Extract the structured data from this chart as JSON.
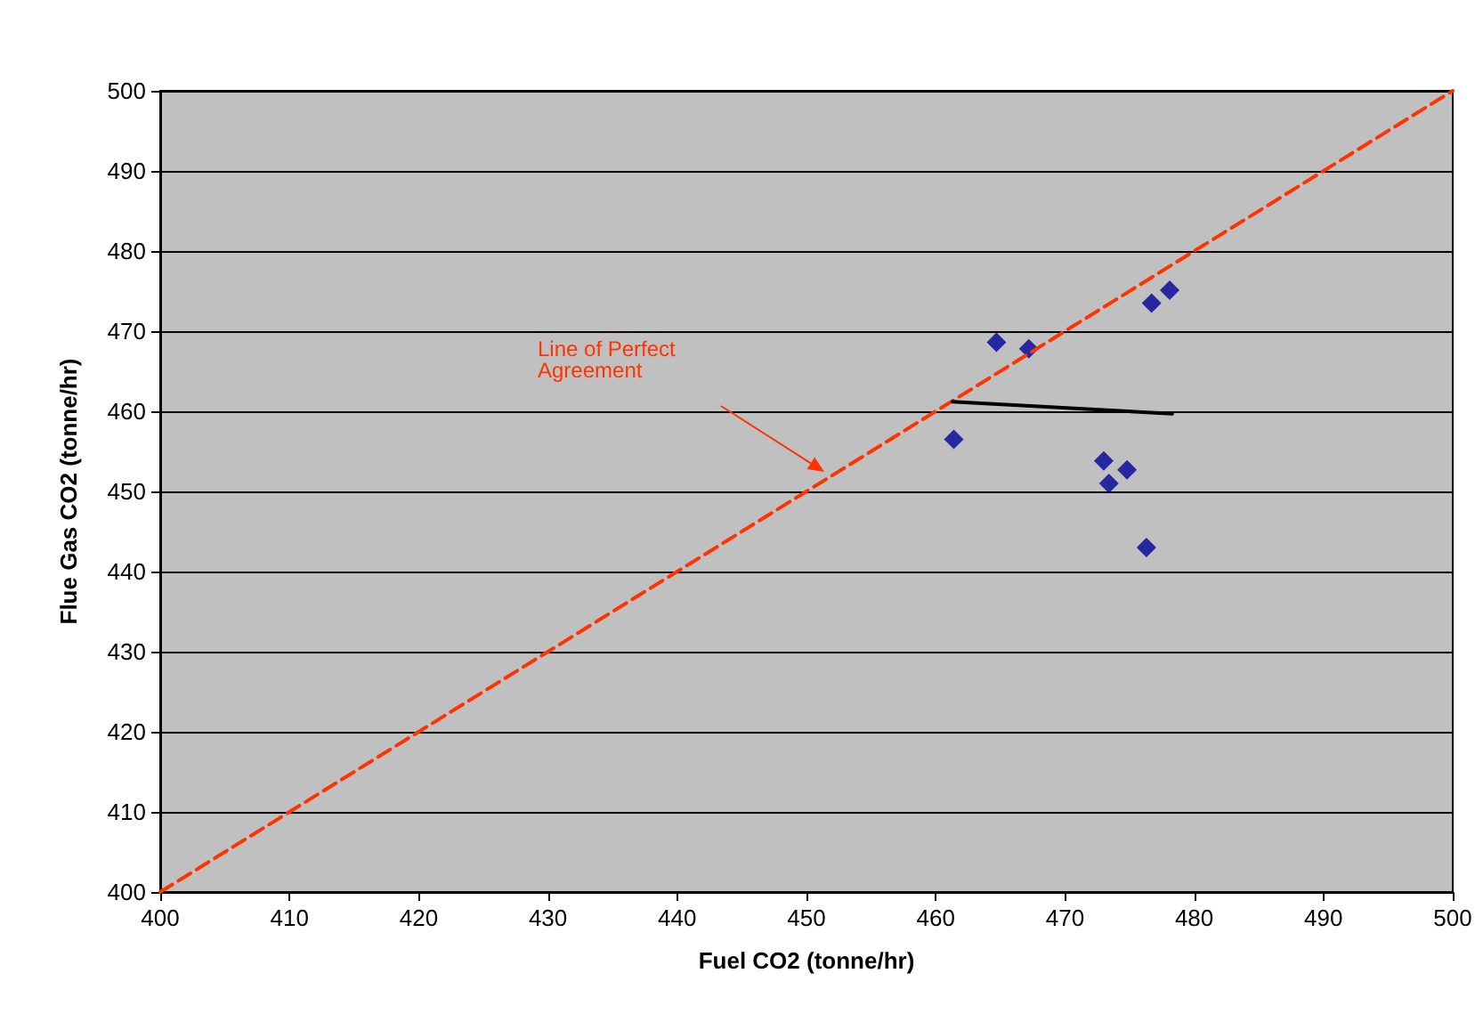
{
  "chart_data": {
    "type": "scatter",
    "xlabel": "Fuel CO2 (tonne/hr)",
    "ylabel": "Flue Gas CO2 (tonne/hr)",
    "xlim": [
      400,
      500
    ],
    "xticks": [
      400,
      410,
      420,
      430,
      440,
      450,
      460,
      470,
      480,
      490,
      500
    ],
    "ylim": [
      400,
      500
    ],
    "yticks": [
      400,
      410,
      420,
      430,
      440,
      450,
      460,
      470,
      480,
      490,
      500
    ],
    "grid": "y",
    "series": [
      {
        "type": "line",
        "color": "#ff3300",
        "line_style": "dashed",
        "marker": "none",
        "x": [
          400,
          500
        ],
        "values": [
          400,
          500
        ]
      },
      {
        "type": "line",
        "color": "#000000",
        "line_style": "solid",
        "marker": "none",
        "x": [
          461.3,
          478.3
        ],
        "values": [
          461.2,
          459.7
        ]
      },
      {
        "color": "#000099",
        "marker": "diamond",
        "x": [
          461.4,
          464.7,
          467.2,
          476.7,
          478.1,
          473.0,
          474.8,
          473.4,
          476.3
        ],
        "values": [
          456.5,
          468.6,
          467.8,
          473.5,
          475.1,
          453.8,
          452.7,
          451.0,
          443.0
        ]
      }
    ],
    "annotations": [
      "Line of Perfect Agreement"
    ]
  }
}
